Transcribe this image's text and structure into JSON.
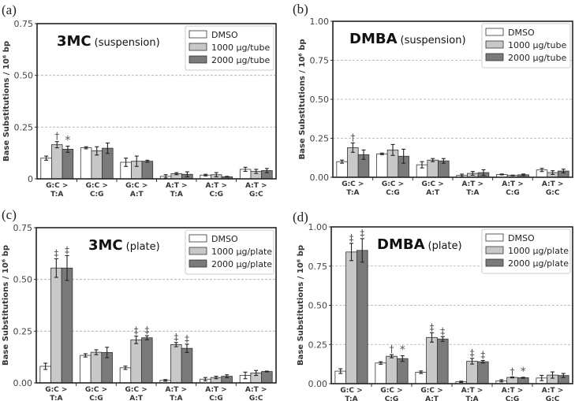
{
  "colors": {
    "DMSO": "#ffffff",
    "low": "#c8c8c8",
    "high": "#7a7a7a",
    "edge": "#333333",
    "grid": "#aaaaaa"
  },
  "chart_data": [
    {
      "type": "bar",
      "panel": "(a)",
      "title_bold": "3MC",
      "title_rest": "(suspension)",
      "ylabel": "Base Substitutions / 10⁶ bp",
      "ylim": [
        0,
        0.75
      ],
      "yticks": [
        "0",
        "0.25",
        "0.50",
        "0.75"
      ],
      "ytick_values": [
        0,
        0.25,
        0.5,
        0.75
      ],
      "grid": "horizontal dashed",
      "legend": "top-right",
      "categories": [
        [
          "G:C >",
          "T:A"
        ],
        [
          "G:C >",
          "C:G"
        ],
        [
          "G:C >",
          "A:T"
        ],
        [
          "A:T >",
          "T:A"
        ],
        [
          "A:T >",
          "C:G"
        ],
        [
          "A:T >",
          "G:C"
        ]
      ],
      "series": [
        {
          "name": "DMSO",
          "values": [
            0.1,
            0.15,
            0.08,
            0.012,
            0.018,
            0.046
          ],
          "errors": [
            0.01,
            0.005,
            0.02,
            0.008,
            0.004,
            0.01
          ],
          "marks": [
            "",
            "",
            "",
            "",
            "",
            ""
          ]
        },
        {
          "name": "1000 µg/tube",
          "values": [
            0.165,
            0.135,
            0.085,
            0.025,
            0.02,
            0.036
          ],
          "errors": [
            0.015,
            0.02,
            0.025,
            0.005,
            0.01,
            0.01
          ],
          "marks": [
            "†",
            "",
            "",
            "",
            "",
            ""
          ]
        },
        {
          "name": "2000 µg/tube",
          "values": [
            0.143,
            0.148,
            0.085,
            0.022,
            0.01,
            0.04
          ],
          "errors": [
            0.015,
            0.025,
            0.005,
            0.012,
            0.002,
            0.01
          ],
          "marks": [
            "*",
            "",
            "",
            "",
            "",
            ""
          ]
        }
      ]
    },
    {
      "type": "bar",
      "panel": "(b)",
      "title_bold": "DMBA",
      "title_rest": "(suspension)",
      "ylabel": "Base Substitutions / 10⁶ bp",
      "ylim": [
        0,
        1.0
      ],
      "yticks": [
        "0.00",
        "0.25",
        "0.50",
        "0.75",
        "1.00"
      ],
      "ytick_values": [
        0,
        0.25,
        0.5,
        0.75,
        1.0
      ],
      "grid": "horizontal dashed",
      "legend": "top-right",
      "categories": [
        [
          "G:C >",
          "T:A"
        ],
        [
          "G:C >",
          "C:G"
        ],
        [
          "G:C >",
          "A:T"
        ],
        [
          "A:T >",
          "T:A"
        ],
        [
          "A:T >",
          "C:G"
        ],
        [
          "A:T >",
          "G:C"
        ]
      ],
      "series": [
        {
          "name": "DMSO",
          "values": [
            0.1,
            0.15,
            0.08,
            0.012,
            0.018,
            0.047
          ],
          "errors": [
            0.01,
            0.005,
            0.02,
            0.008,
            0.003,
            0.01
          ],
          "marks": [
            "",
            "",
            "",
            "",
            "",
            ""
          ]
        },
        {
          "name": "1000 µg/tube",
          "values": [
            0.19,
            0.175,
            0.11,
            0.025,
            0.012,
            0.03
          ],
          "errors": [
            0.03,
            0.035,
            0.01,
            0.012,
            0.002,
            0.012
          ],
          "marks": [
            "†",
            "",
            "",
            "",
            "",
            ""
          ]
        },
        {
          "name": "2000 µg/tube",
          "values": [
            0.145,
            0.135,
            0.105,
            0.03,
            0.016,
            0.04
          ],
          "errors": [
            0.03,
            0.045,
            0.015,
            0.018,
            0.005,
            0.012
          ],
          "marks": [
            "",
            "",
            "",
            "",
            "",
            ""
          ]
        }
      ]
    },
    {
      "type": "bar",
      "panel": "(c)",
      "title_bold": "3MC",
      "title_rest": "(plate)",
      "ylabel": "Base Substitutions / 10⁶ bp",
      "ylim": [
        0,
        0.75
      ],
      "yticks": [
        "0.00",
        "0.25",
        "0.50",
        "0.75"
      ],
      "ytick_values": [
        0,
        0.25,
        0.5,
        0.75
      ],
      "grid": "horizontal dashed",
      "legend": "top-right",
      "categories": [
        [
          "G:C >",
          "T:A"
        ],
        [
          "G:C >",
          "C:G"
        ],
        [
          "G:C >",
          "A:T"
        ],
        [
          "A:T >",
          "T:A"
        ],
        [
          "A:T >",
          "C:G"
        ],
        [
          "A:T >",
          "G:C"
        ]
      ],
      "series": [
        {
          "name": "DMSO",
          "values": [
            0.08,
            0.133,
            0.073,
            0.012,
            0.018,
            0.036
          ],
          "errors": [
            0.015,
            0.008,
            0.008,
            0.004,
            0.008,
            0.016
          ],
          "marks": [
            "",
            "",
            "",
            "",
            "",
            ""
          ]
        },
        {
          "name": "1000 µg/plate",
          "values": [
            0.555,
            0.148,
            0.208,
            0.185,
            0.026,
            0.048
          ],
          "errors": [
            0.045,
            0.012,
            0.018,
            0.01,
            0.006,
            0.012
          ],
          "marks": [
            "‡",
            "",
            "‡",
            "‡",
            "",
            ""
          ]
        },
        {
          "name": "2000 µg/plate",
          "values": [
            0.555,
            0.147,
            0.218,
            0.167,
            0.032,
            0.055
          ],
          "errors": [
            0.06,
            0.025,
            0.01,
            0.02,
            0.007,
            0.002
          ],
          "marks": [
            "‡",
            "",
            "‡",
            "‡",
            "",
            ""
          ]
        }
      ]
    },
    {
      "type": "bar",
      "panel": "(d)",
      "title_bold": "DMBA",
      "title_rest": "(plate)",
      "ylabel": "Base Substitutions / 10⁶ bp",
      "ylim": [
        0,
        1.0
      ],
      "yticks": [
        "0.00",
        "0.25",
        "0.50",
        "0.75",
        "1.00"
      ],
      "ytick_values": [
        0,
        0.25,
        0.5,
        0.75,
        1.0
      ],
      "grid": "horizontal dashed",
      "legend": "top-right",
      "categories": [
        [
          "G:C >",
          "T:A"
        ],
        [
          "G:C >",
          "C:G"
        ],
        [
          "G:C >",
          "A:T"
        ],
        [
          "A:T >",
          "T:A"
        ],
        [
          "A:T >",
          "C:G"
        ],
        [
          "A:T >",
          "G:C"
        ]
      ],
      "series": [
        {
          "name": "DMSO",
          "values": [
            0.08,
            0.132,
            0.073,
            0.012,
            0.018,
            0.036
          ],
          "errors": [
            0.015,
            0.008,
            0.008,
            0.004,
            0.007,
            0.017
          ],
          "marks": [
            "",
            "",
            "",
            "",
            "",
            ""
          ]
        },
        {
          "name": "1000 µg/plate",
          "values": [
            0.84,
            0.175,
            0.295,
            0.143,
            0.04,
            0.055
          ],
          "errors": [
            0.055,
            0.01,
            0.03,
            0.018,
            0.003,
            0.02
          ],
          "marks": [
            "‡",
            "†",
            "‡",
            "‡",
            "†",
            ""
          ]
        },
        {
          "name": "2000 µg/plate",
          "values": [
            0.85,
            0.16,
            0.285,
            0.14,
            0.038,
            0.052
          ],
          "errors": [
            0.075,
            0.018,
            0.015,
            0.008,
            0.003,
            0.013
          ],
          "marks": [
            "‡",
            "*",
            "‡",
            "‡",
            "*",
            ""
          ]
        }
      ]
    }
  ]
}
